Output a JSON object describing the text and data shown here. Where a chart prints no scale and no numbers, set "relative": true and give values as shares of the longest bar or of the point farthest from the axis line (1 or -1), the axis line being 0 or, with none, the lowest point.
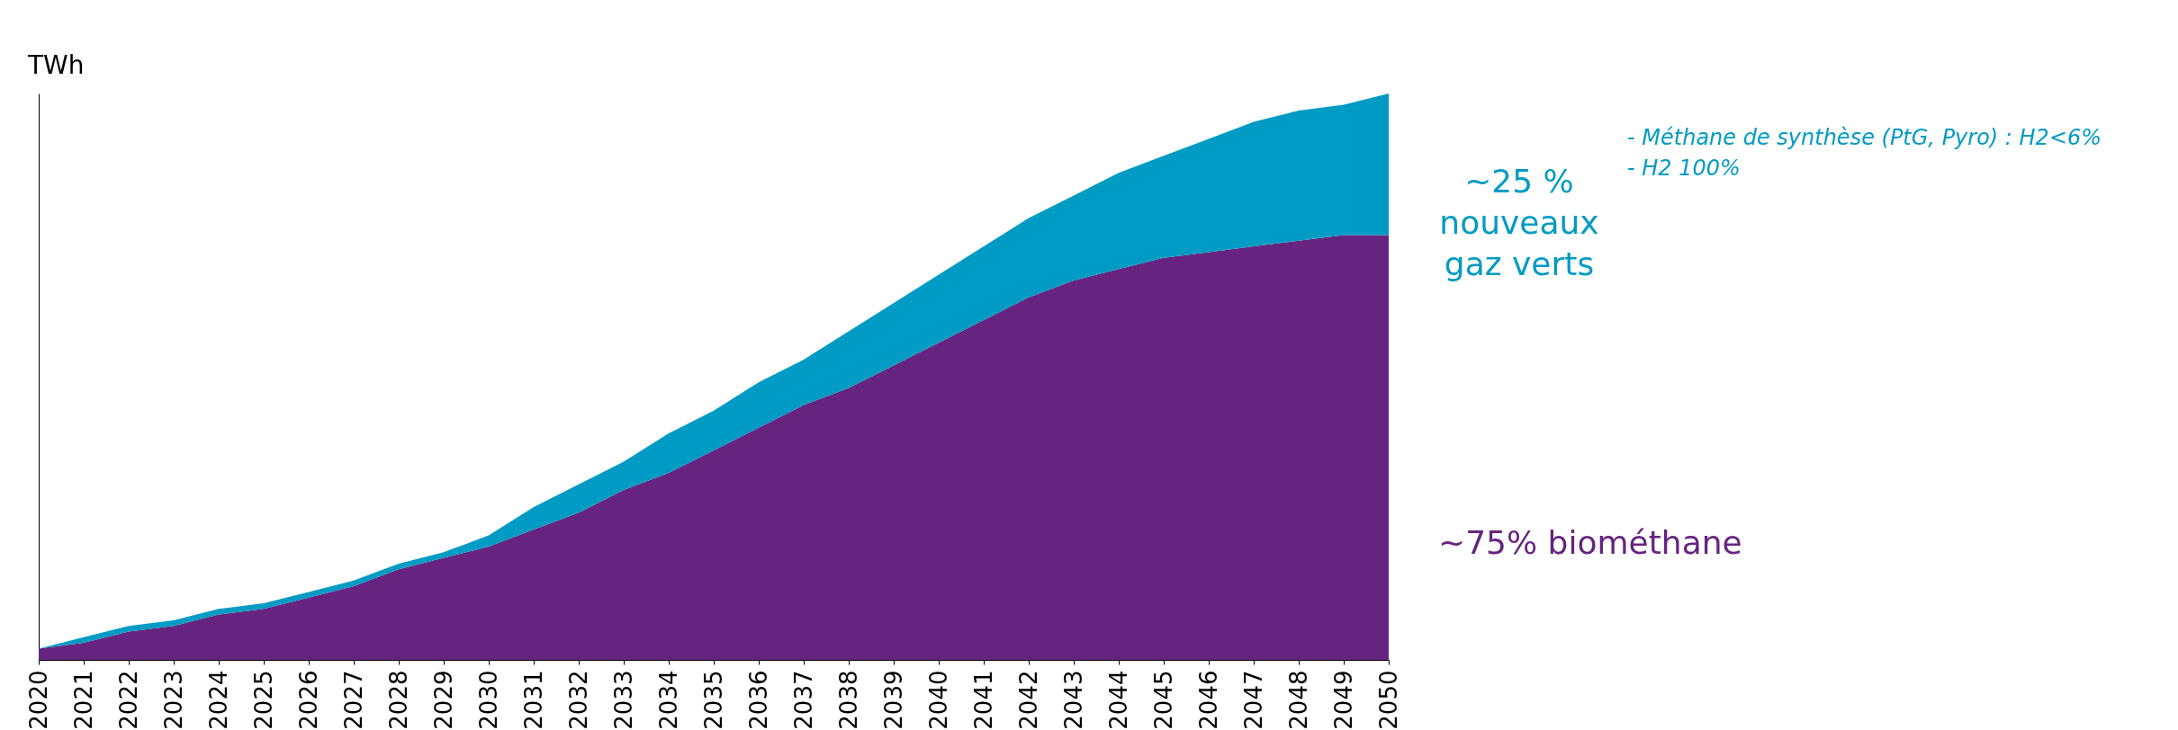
{
  "chart_data": {
    "type": "area",
    "stacked": true,
    "relative": true,
    "ylabel": "TWh",
    "grid": false,
    "legend": false,
    "categories": [
      "2020",
      "2021",
      "2022",
      "2023",
      "2024",
      "2025",
      "2026",
      "2027",
      "2028",
      "2029",
      "2030",
      "2031",
      "2032",
      "2033",
      "2034",
      "2035",
      "2036",
      "2037",
      "2038",
      "2039",
      "2040",
      "2041",
      "2042",
      "2043",
      "2044",
      "2045",
      "2046",
      "2047",
      "2048",
      "2049",
      "2050"
    ],
    "series": [
      {
        "name": "~75% biométhane",
        "color": "#662480",
        "values": [
          0.02,
          0.03,
          0.05,
          0.06,
          0.08,
          0.09,
          0.11,
          0.13,
          0.16,
          0.18,
          0.2,
          0.23,
          0.26,
          0.3,
          0.33,
          0.37,
          0.41,
          0.45,
          0.48,
          0.52,
          0.56,
          0.6,
          0.64,
          0.67,
          0.69,
          0.71,
          0.72,
          0.73,
          0.74,
          0.75,
          0.75
        ]
      },
      {
        "name": "~25 % nouveaux gaz verts",
        "color": "#009bc4",
        "values": [
          0.0,
          0.01,
          0.01,
          0.01,
          0.01,
          0.01,
          0.01,
          0.01,
          0.01,
          0.01,
          0.02,
          0.04,
          0.05,
          0.05,
          0.07,
          0.07,
          0.08,
          0.08,
          0.1,
          0.11,
          0.12,
          0.13,
          0.14,
          0.15,
          0.17,
          0.18,
          0.2,
          0.22,
          0.23,
          0.23,
          0.25
        ]
      }
    ],
    "annotations": [
      "-   Méthane de synthèse (PtG, Pyro) : H2<6%",
      "-   H2 100%"
    ]
  }
}
